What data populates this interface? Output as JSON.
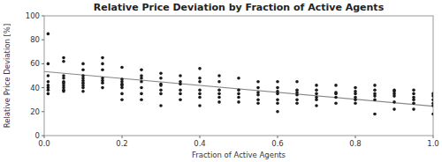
{
  "chart_data": {
    "type": "scatter",
    "title": "Relative Price Deviation by Fraction of Active Agents",
    "x_label": "Fraction of Active Agents",
    "y_label": "Relative Price Deviation [%]",
    "xlim": [
      0.0,
      1.0
    ],
    "ylim": [
      0,
      100
    ],
    "xticks": [
      {
        "value": 0.0,
        "label": "0.0"
      },
      0.2,
      0.4,
      0.6,
      0.8,
      {
        "value": 1.0,
        "label": "1.0"
      }
    ],
    "yticks": [
      0,
      20,
      40,
      60,
      80,
      100
    ],
    "grid": false,
    "series": [
      {
        "type": "scatter",
        "color": "#1a1a1a",
        "x": [
          0.01,
          0.01,
          0.01,
          0.01,
          0.01,
          0.01,
          0.01,
          0.01,
          0.05,
          0.05,
          0.05,
          0.05,
          0.05,
          0.05,
          0.05,
          0.05,
          0.05,
          0.05,
          0.1,
          0.1,
          0.1,
          0.1,
          0.1,
          0.1,
          0.1,
          0.1,
          0.1,
          0.15,
          0.15,
          0.15,
          0.15,
          0.15,
          0.15,
          0.15,
          0.2,
          0.2,
          0.2,
          0.2,
          0.2,
          0.2,
          0.2,
          0.2,
          0.25,
          0.25,
          0.25,
          0.25,
          0.25,
          0.25,
          0.25,
          0.3,
          0.3,
          0.3,
          0.3,
          0.3,
          0.3,
          0.3,
          0.35,
          0.35,
          0.35,
          0.35,
          0.35,
          0.35,
          0.4,
          0.4,
          0.4,
          0.4,
          0.4,
          0.4,
          0.4,
          0.45,
          0.45,
          0.45,
          0.45,
          0.45,
          0.45,
          0.5,
          0.5,
          0.5,
          0.5,
          0.5,
          0.55,
          0.55,
          0.55,
          0.55,
          0.55,
          0.55,
          0.6,
          0.6,
          0.6,
          0.6,
          0.6,
          0.6,
          0.6,
          0.65,
          0.65,
          0.65,
          0.65,
          0.65,
          0.65,
          0.7,
          0.7,
          0.7,
          0.7,
          0.7,
          0.7,
          0.75,
          0.75,
          0.75,
          0.75,
          0.75,
          0.8,
          0.8,
          0.8,
          0.8,
          0.8,
          0.8,
          0.85,
          0.85,
          0.85,
          0.85,
          0.85,
          0.85,
          0.9,
          0.9,
          0.9,
          0.9,
          0.9,
          0.9,
          0.95,
          0.95,
          0.95,
          0.95,
          0.95,
          0.95,
          1.0,
          1.0,
          1.0,
          1.0,
          1.0,
          1.0
        ],
        "values": [
          85,
          60,
          50,
          45,
          42,
          40,
          38,
          35,
          65,
          62,
          50,
          48,
          45,
          44,
          42,
          40,
          38,
          37,
          60,
          55,
          50,
          48,
          46,
          44,
          42,
          40,
          37,
          65,
          60,
          55,
          48,
          46,
          44,
          40,
          57,
          47,
          45,
          43,
          42,
          40,
          35,
          30,
          55,
          50,
          48,
          45,
          40,
          35,
          30,
          52,
          48,
          43,
          42,
          38,
          35,
          25,
          50,
          45,
          43,
          38,
          35,
          30,
          56,
          48,
          45,
          38,
          35,
          32,
          25,
          50,
          45,
          38,
          35,
          32,
          28,
          48,
          38,
          35,
          32,
          28,
          45,
          40,
          36,
          34,
          30,
          27,
          45,
          40,
          37,
          35,
          30,
          27,
          20,
          45,
          38,
          36,
          34,
          30,
          27,
          42,
          38,
          35,
          32,
          30,
          25,
          42,
          36,
          35,
          32,
          27,
          40,
          37,
          35,
          32,
          30,
          27,
          42,
          38,
          35,
          33,
          30,
          18,
          38,
          37,
          35,
          33,
          28,
          22,
          38,
          35,
          32,
          30,
          27,
          22,
          35,
          33,
          30,
          27,
          25,
          18
        ]
      },
      {
        "type": "line",
        "color": "#888888",
        "x": [
          0.0,
          1.0
        ],
        "values": [
          53.5,
          24.5
        ]
      }
    ]
  }
}
